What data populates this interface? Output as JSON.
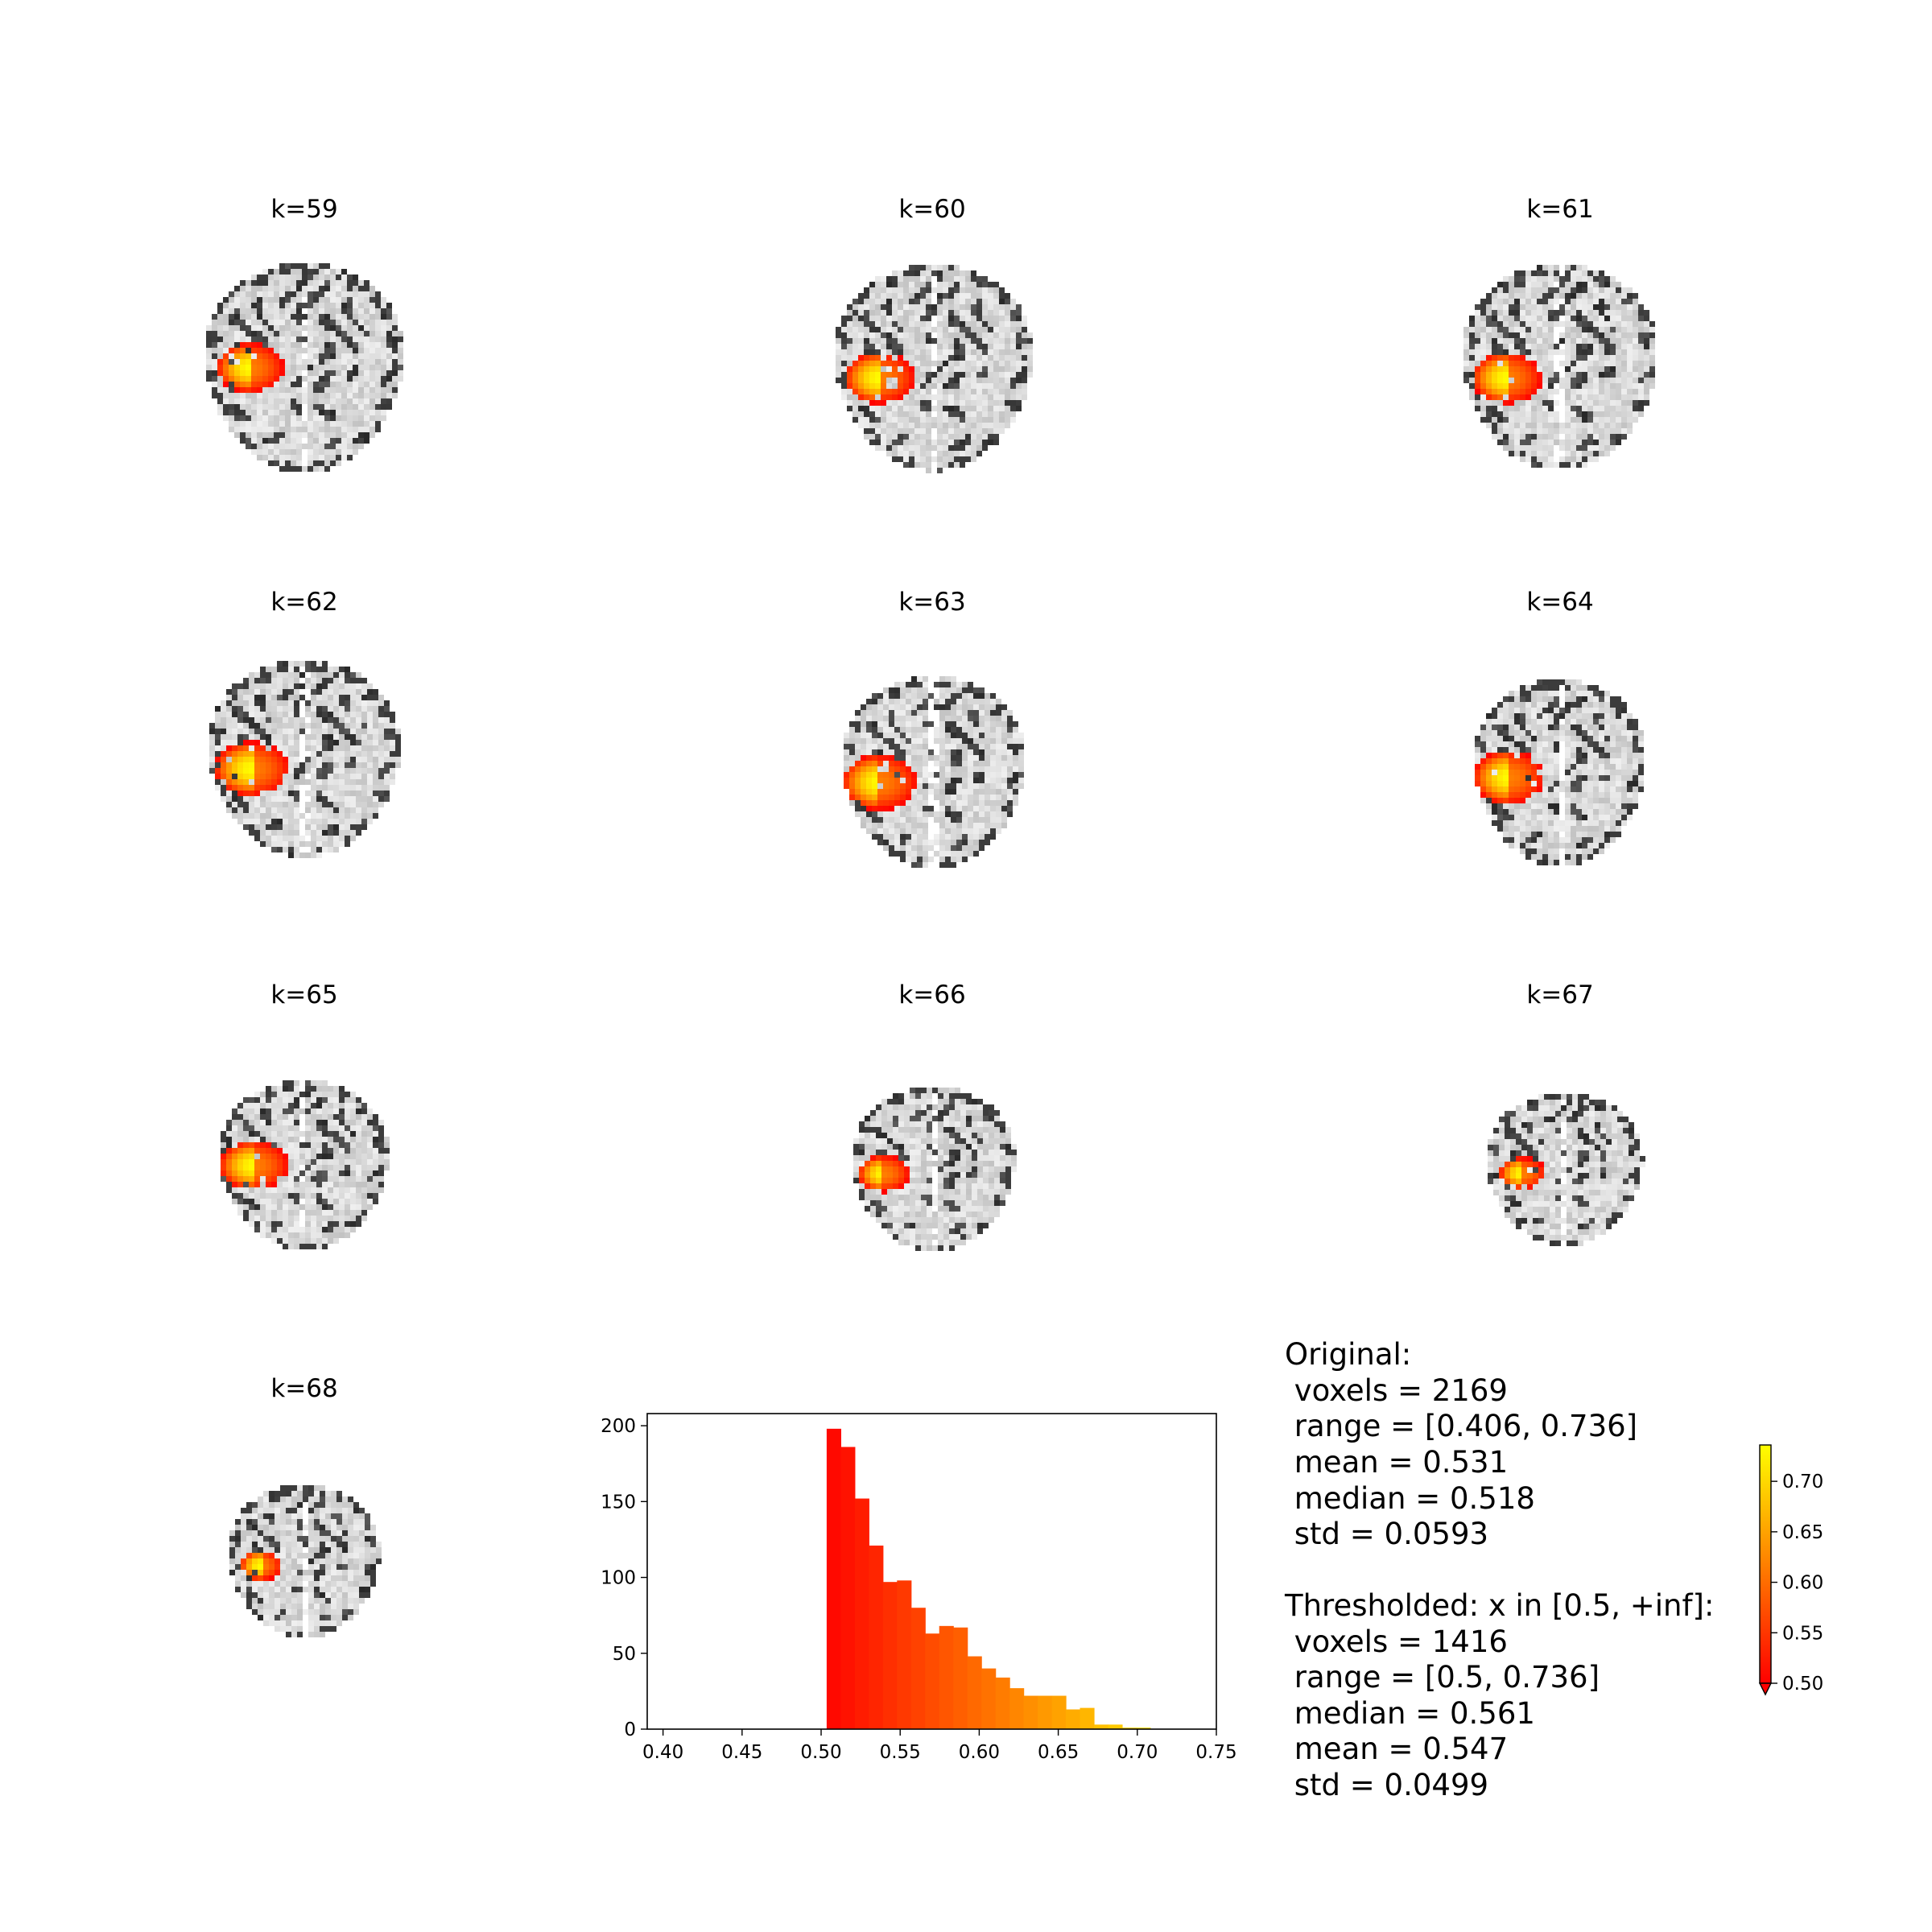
{
  "slices": [
    {
      "title": "k=59"
    },
    {
      "title": "k=60"
    },
    {
      "title": "k=61"
    },
    {
      "title": "k=62"
    },
    {
      "title": "k=63"
    },
    {
      "title": "k=64"
    },
    {
      "title": "k=65"
    },
    {
      "title": "k=66"
    },
    {
      "title": "k=67"
    },
    {
      "title": "k=68"
    }
  ],
  "stats": {
    "original_header": "Original:",
    "original_lines": [
      " voxels = 2169",
      " range = [0.406, 0.736]",
      " mean = 0.531",
      " median = 0.518",
      " std = 0.0593"
    ],
    "thresholded_header": "Thresholded: x in [0.5, +inf]:",
    "thresholded_lines": [
      " voxels = 1416",
      " range = [0.5, 0.736]",
      " median = 0.561",
      " mean = 0.547",
      " std = 0.0499"
    ]
  },
  "colorbar": {
    "ticks": [
      "0.50",
      "0.55",
      "0.60",
      "0.65",
      "0.70"
    ],
    "tick_values": [
      0.5,
      0.55,
      0.6,
      0.65,
      0.7
    ],
    "vmin": 0.5,
    "vmax": 0.736,
    "colors": [
      "#ff0000",
      "#ffff00"
    ]
  },
  "chart_data": {
    "type": "bar",
    "title": "",
    "xlabel": "",
    "ylabel": "",
    "xlim": [
      0.39,
      0.75
    ],
    "ylim": [
      0,
      208
    ],
    "xticks": [
      "0.40",
      "0.45",
      "0.50",
      "0.55",
      "0.60",
      "0.65",
      "0.70",
      "0.75"
    ],
    "xtick_values": [
      0.4,
      0.45,
      0.5,
      0.55,
      0.6,
      0.65,
      0.7,
      0.75
    ],
    "yticks": [
      "0",
      "50",
      "100",
      "150",
      "200"
    ],
    "ytick_values": [
      0,
      50,
      100,
      150,
      200
    ],
    "bin_edges": [
      0.5035,
      0.5124,
      0.5213,
      0.5302,
      0.5391,
      0.548,
      0.5569,
      0.5658,
      0.5747,
      0.5836,
      0.5925,
      0.6014,
      0.6103,
      0.6192,
      0.6281,
      0.637,
      0.6459,
      0.6548,
      0.6637,
      0.6726,
      0.6815,
      0.6904,
      0.6993,
      0.7082,
      0.7171,
      0.726
    ],
    "values": [
      198,
      186,
      152,
      121,
      97,
      98,
      80,
      63,
      68,
      67,
      48,
      40,
      34,
      27,
      22,
      22,
      22,
      13,
      14,
      3,
      3,
      1,
      1,
      0,
      0
    ]
  }
}
